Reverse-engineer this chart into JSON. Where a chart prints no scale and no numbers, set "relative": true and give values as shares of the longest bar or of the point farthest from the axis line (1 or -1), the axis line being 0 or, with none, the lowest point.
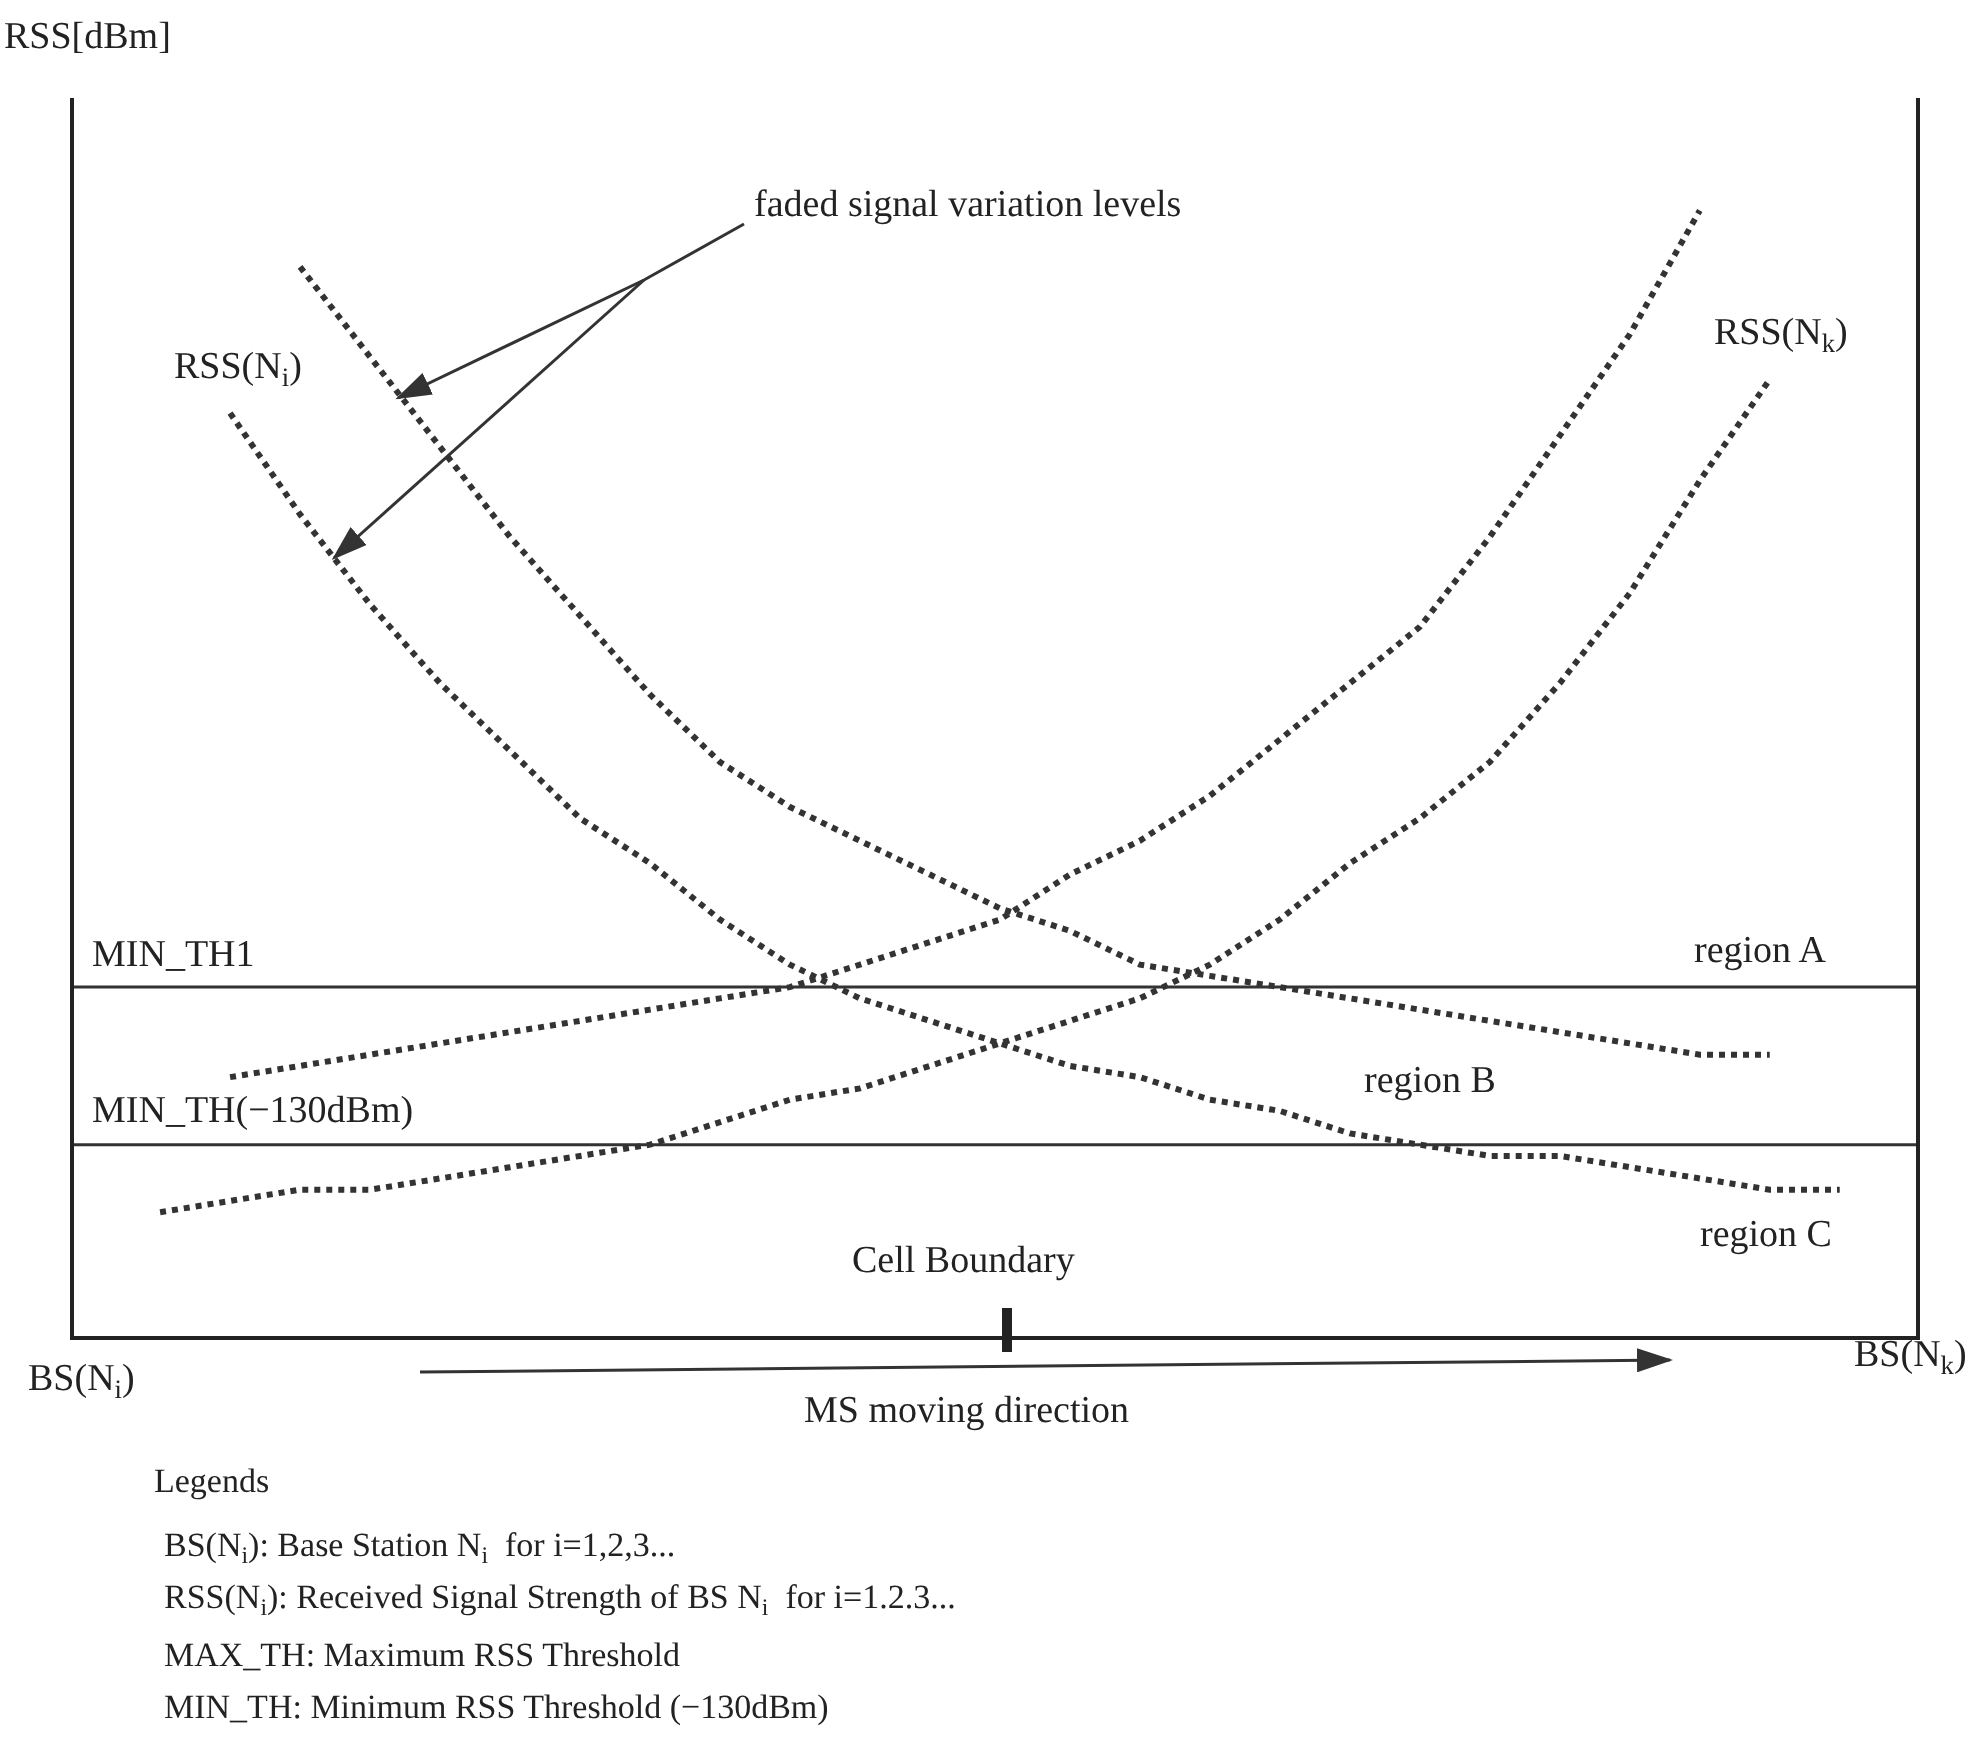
{
  "chart_data": {
    "type": "line",
    "relative": true,
    "ylabel": "RSS[dBm]",
    "legend": false,
    "line_style": "dotted",
    "marker": "none",
    "categories": [
      null,
      null,
      null,
      null,
      null,
      null,
      null,
      null,
      null,
      null,
      null,
      null,
      null,
      null,
      null,
      null,
      null,
      null,
      null,
      null,
      null,
      null,
      null,
      null,
      null
    ],
    "series": [
      {
        "color": "#333333",
        "values": [
          null,
          null,
          0.95,
          0.87,
          0.79,
          0.71,
          0.64,
          0.57,
          0.51,
          0.47,
          0.44,
          0.41,
          0.38,
          0.36,
          0.33,
          0.32,
          0.31,
          0.3,
          0.29,
          0.28,
          0.27,
          0.26,
          0.25,
          0.25,
          null
        ]
      },
      {
        "name": "RSS(N$_{i}$)",
        "color": "#333333",
        "values": [
          null,
          0.82,
          0.73,
          0.65,
          0.58,
          0.52,
          0.46,
          0.42,
          0.37,
          0.33,
          0.3,
          0.28,
          0.26,
          0.24,
          0.23,
          0.21,
          0.2,
          0.18,
          0.17,
          0.16,
          0.16,
          0.15,
          0.14,
          0.13,
          0.13
        ]
      },
      {
        "color": "#333333",
        "values": [
          null,
          0.23,
          0.24,
          0.25,
          0.26,
          0.27,
          0.28,
          0.29,
          0.3,
          0.31,
          0.33,
          0.35,
          0.37,
          0.41,
          0.44,
          0.48,
          0.53,
          0.58,
          0.63,
          0.71,
          0.8,
          0.89,
          1,
          null,
          null
        ]
      },
      {
        "name": "RSS(N$_{k}$)",
        "color": "#333333",
        "values": [
          0.11,
          0.12,
          0.13,
          0.13,
          0.14,
          0.15,
          0.16,
          0.17,
          0.19,
          0.21,
          0.22,
          0.24,
          0.26,
          0.28,
          0.3,
          0.33,
          0.37,
          0.42,
          0.46,
          0.51,
          0.58,
          0.66,
          0.76,
          0.85,
          null
        ]
      }
    ],
    "ref_lines": [
      {
        "axis": "y",
        "value": 0.31,
        "label": "MIN_TH1",
        "color": "#333333"
      },
      {
        "axis": "y",
        "value": 0.17,
        "label": "MIN_TH(−130dBm)",
        "color": "#333333"
      }
    ],
    "annotations": [
      "faded signal variation levels",
      "region A",
      "region B",
      "region C",
      "Cell Boundary",
      "BS(N$_{i}$)",
      "BS(N$_{k}$)",
      "MS moving direction",
      "Legends",
      "BS(N$_{i}$): Base Station N$_{i}$  for i=1,2,3...",
      "RSS(N$_{i}$): Received Signal Strength of BS N$_{i}$  for i=1.2.3...",
      "MAX_TH: Maximum RSS Threshold",
      "MIN_TH: Minimum RSS Threshold (−130dBm)"
    ]
  }
}
